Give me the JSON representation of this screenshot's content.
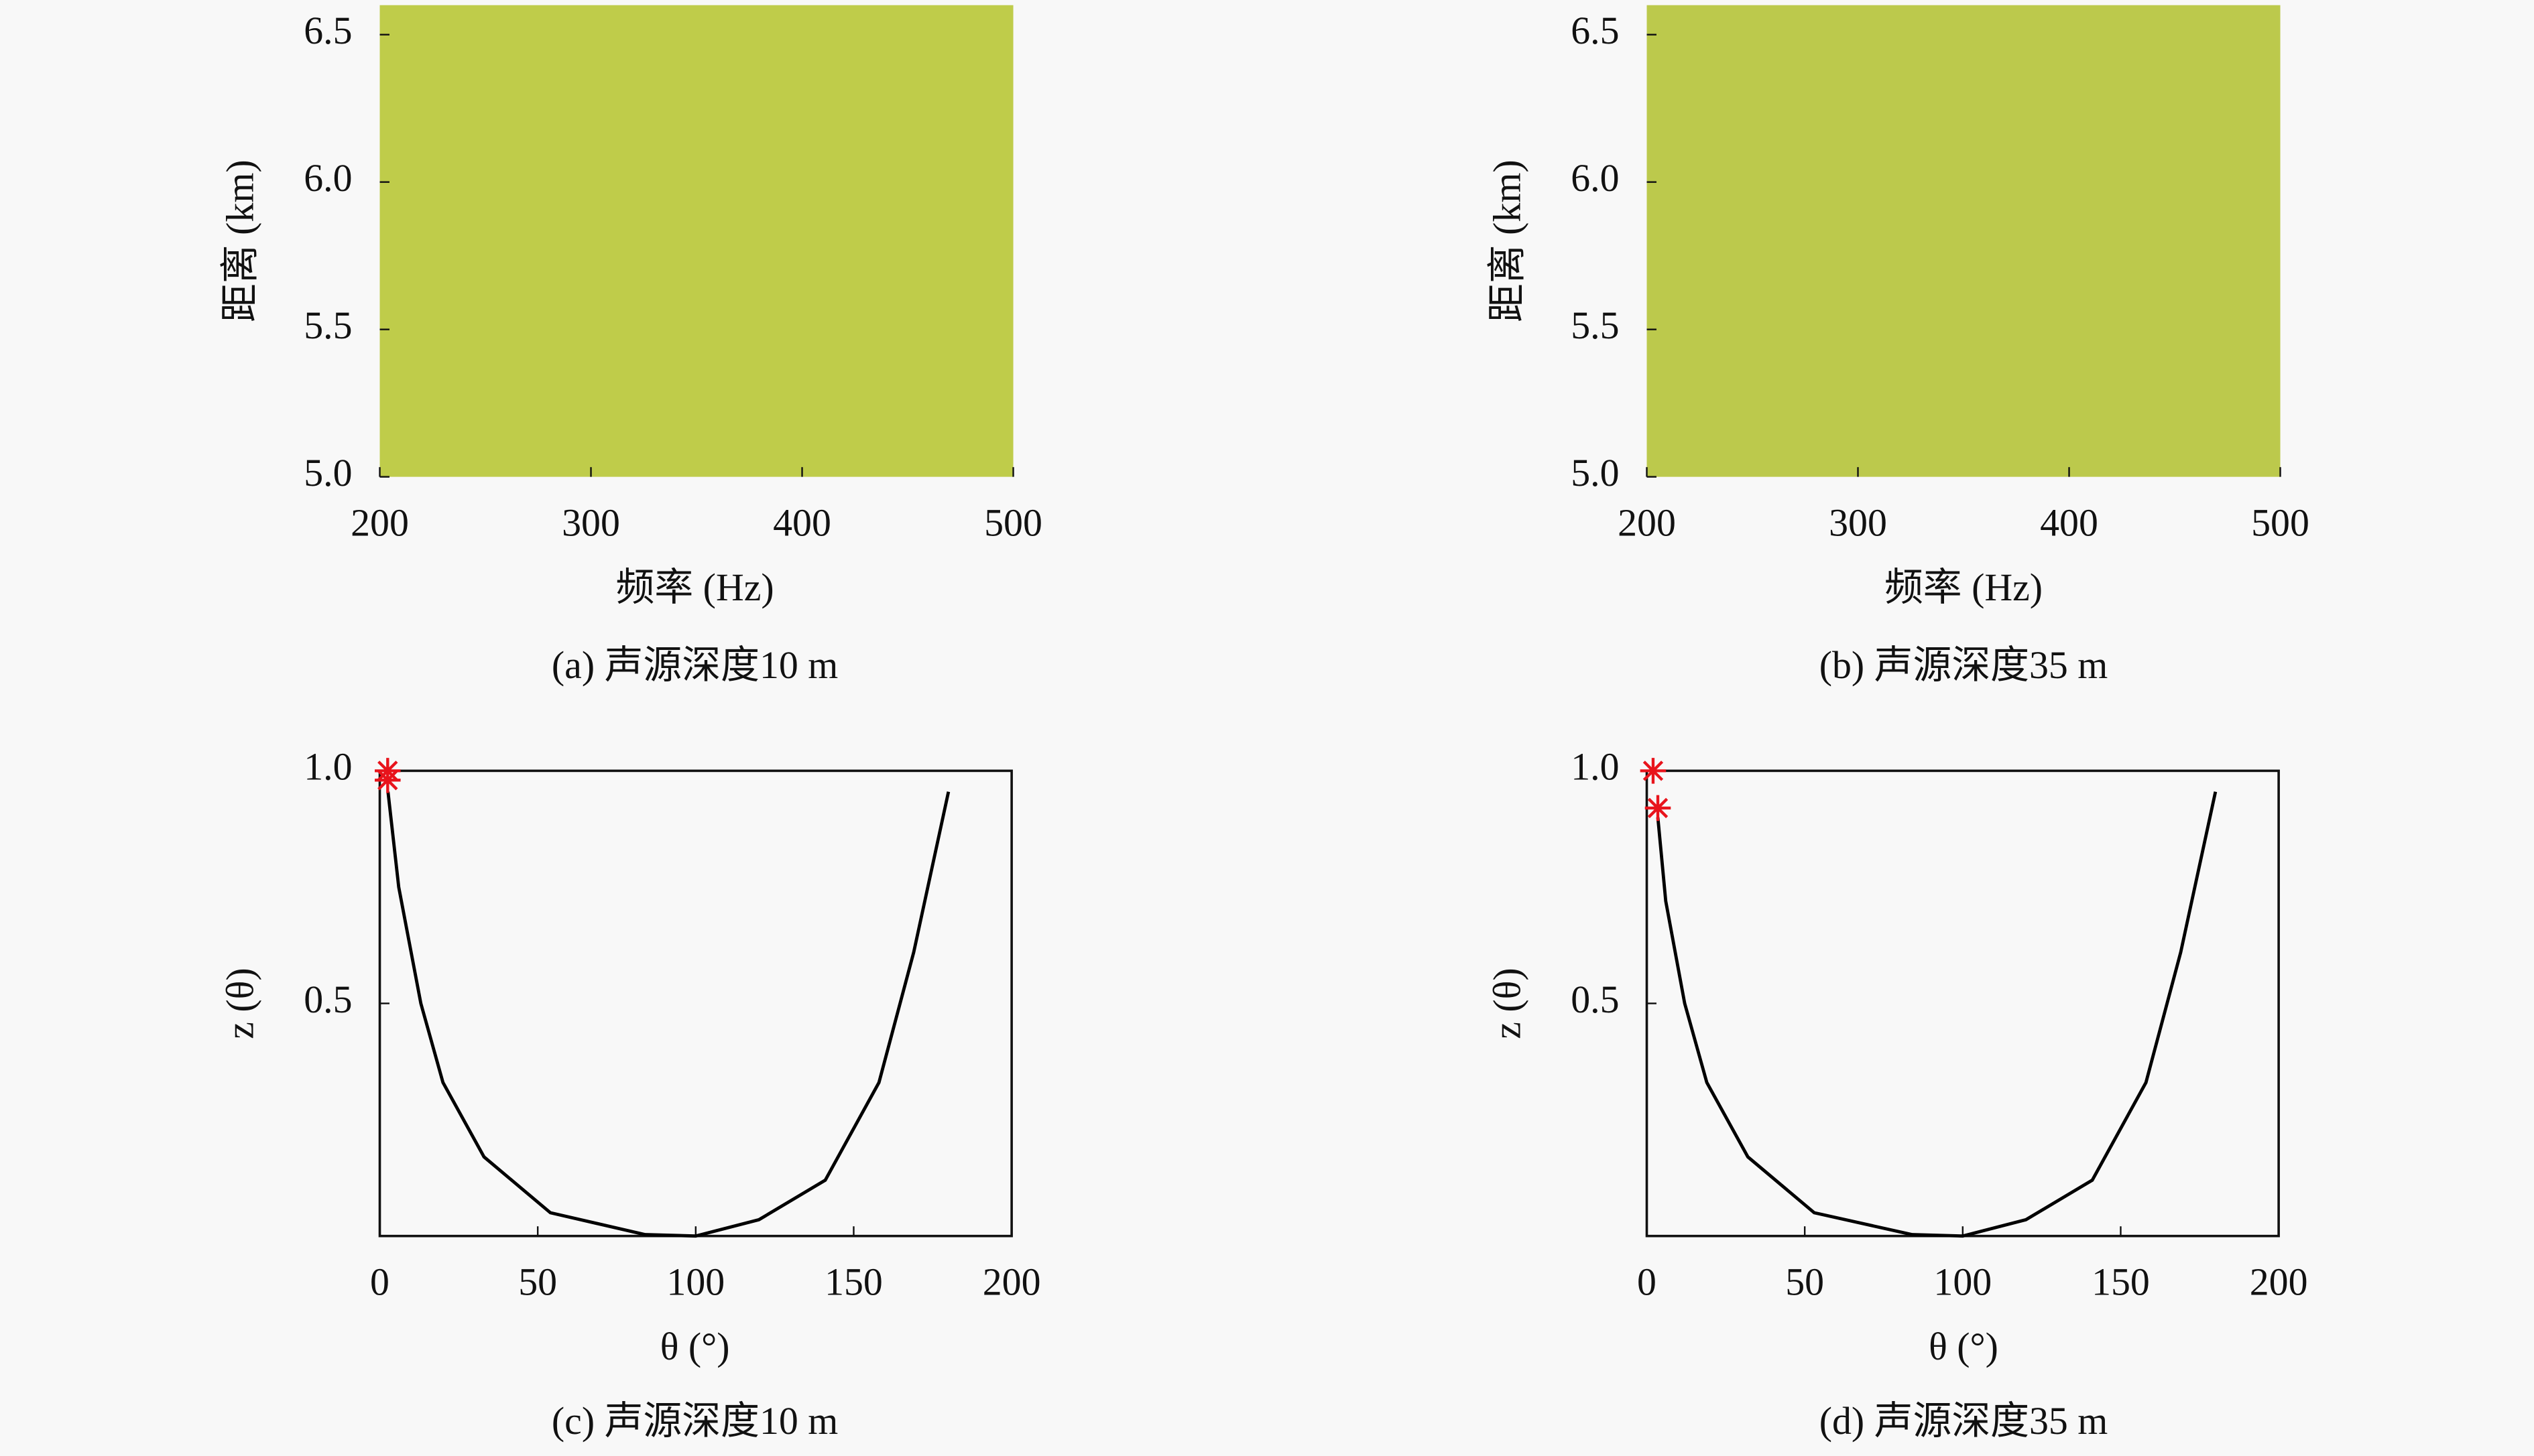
{
  "chart_data": [
    {
      "type": "heatmap",
      "caption": "(a) 声源深度10 m",
      "xlabel": "频率 (Hz)",
      "ylabel": "距离 (km)",
      "color": "#bfcc4a",
      "xlim": [
        200,
        500
      ],
      "xticks": [
        200,
        300,
        400,
        500
      ],
      "ylim": [
        5.0,
        6.6
      ],
      "yticks": [
        {
          "value": 5,
          "label": "5.0"
        },
        5.5,
        {
          "value": 6,
          "label": "6.0"
        },
        6.5
      ]
    },
    {
      "type": "heatmap",
      "caption": "(b) 声源深度35 m",
      "xlabel": "频率 (Hz)",
      "ylabel": "距离 (km)",
      "color": "#bcc94c",
      "xlim": [
        200,
        500
      ],
      "xticks": [
        200,
        300,
        400,
        500
      ],
      "ylim": [
        5.0,
        6.6
      ],
      "yticks": [
        {
          "value": 5,
          "label": "5.0"
        },
        5.5,
        {
          "value": 6,
          "label": "6.0"
        },
        6.5
      ]
    },
    {
      "type": "line",
      "caption": "(c) 声源深度10 m",
      "xlabel": "θ (°)",
      "ylabel": "z (θ)",
      "xlim": [
        0,
        200
      ],
      "xticks": [
        0,
        50,
        100,
        150,
        200
      ],
      "ylim": [
        0,
        1
      ],
      "yticks": [
        0.5,
        {
          "value": 1,
          "label": "1.0"
        }
      ],
      "series": [
        {
          "color": "#000000",
          "marker": "line",
          "x": [
            2.6,
            6,
            13,
            20,
            33,
            54,
            84,
            100,
            120,
            141,
            158,
            169,
            180
          ],
          "y": [
            0.955,
            0.75,
            0.5,
            0.33,
            0.17,
            0.05,
            0.003,
            0,
            0.035,
            0.12,
            0.33,
            0.61,
            0.955
          ]
        },
        {
          "color": "#e8141c",
          "marker": "star",
          "x": [
            2.5,
            2.5
          ],
          "y": [
            1.0,
            0.98
          ]
        }
      ]
    },
    {
      "type": "line",
      "caption": "(d) 声源深度35 m",
      "xlabel": "θ (°)",
      "ylabel": "z (θ)",
      "xlim": [
        0,
        200
      ],
      "xticks": [
        0,
        50,
        100,
        150,
        200
      ],
      "ylim": [
        0,
        1
      ],
      "yticks": [
        0.5,
        {
          "value": 1,
          "label": "1.0"
        }
      ],
      "series": [
        {
          "color": "#000000",
          "marker": "line",
          "x": [
            3.5,
            6,
            12,
            19,
            32,
            53,
            84,
            100,
            120,
            141,
            158,
            169,
            180
          ],
          "y": [
            0.9,
            0.72,
            0.5,
            0.33,
            0.17,
            0.05,
            0.003,
            0,
            0.035,
            0.12,
            0.33,
            0.61,
            0.955
          ]
        },
        {
          "color": "#e8141c",
          "marker": "star",
          "x": [
            2,
            3.5
          ],
          "y": [
            1.0,
            0.92
          ]
        }
      ]
    }
  ]
}
